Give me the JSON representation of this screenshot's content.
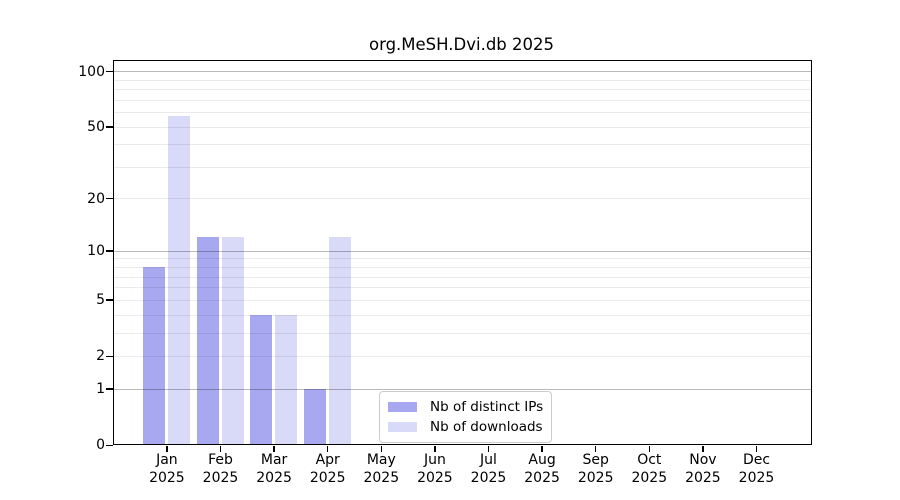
{
  "chart_data": {
    "type": "bar",
    "title": "org.MeSH.Dvi.db 2025",
    "categories": [
      "Jan",
      "Feb",
      "Mar",
      "Apr",
      "May",
      "Jun",
      "Jul",
      "Aug",
      "Sep",
      "Oct",
      "Nov",
      "Dec"
    ],
    "year_label": "2025",
    "series": [
      {
        "name": "Nb of distinct IPs",
        "color": "#a8a8f0",
        "values": [
          8,
          12,
          4,
          1,
          0,
          0,
          0,
          0,
          0,
          0,
          0,
          0
        ]
      },
      {
        "name": "Nb of downloads",
        "color": "#d9d9f8",
        "values": [
          57,
          12,
          4,
          12,
          0,
          0,
          0,
          0,
          0,
          0,
          0,
          0
        ]
      }
    ],
    "yticks": [
      100,
      50,
      20,
      10,
      5,
      2,
      1,
      0
    ],
    "yscale": "log2(value+1)",
    "ylim": [
      0,
      115
    ],
    "xlabel": "",
    "ylabel": "",
    "grid": true,
    "legend_position": "lower center inside"
  }
}
